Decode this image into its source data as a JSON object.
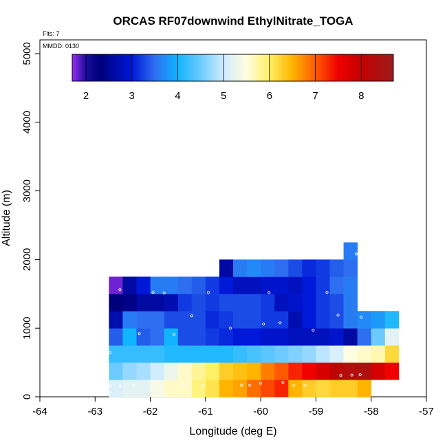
{
  "colors": {
    "background": "#ffffff",
    "axis": "#000000",
    "point_stroke": "#ffffff"
  },
  "chart_data": {
    "type": "heatmap",
    "title": "ORCAS RF07downwind EthylNitrate_TOGA",
    "xlabel": "Longitude (deg E)",
    "ylabel": "Altitude (m)",
    "xlim": [
      -64,
      -57
    ],
    "ylim": [
      0,
      5200
    ],
    "xticks": [
      -64,
      -63,
      -62,
      -61,
      -60,
      -59,
      -58,
      -57
    ],
    "yticks": [
      0,
      1000,
      2000,
      3000,
      4000,
      5000
    ],
    "annotations": {
      "flights": "Flts: 7",
      "date": "MMDD: 0130"
    },
    "colorbar": {
      "range": [
        1.7,
        8.7
      ],
      "ticks": [
        2,
        3,
        4,
        5,
        6,
        7,
        8
      ],
      "stops": [
        [
          1.7,
          "#9a2cf0"
        ],
        [
          2.0,
          "#1a0da0"
        ],
        [
          2.3,
          "#00007a"
        ],
        [
          3.0,
          "#0018d8"
        ],
        [
          3.5,
          "#2e6ef0"
        ],
        [
          4.0,
          "#10b4ff"
        ],
        [
          4.5,
          "#6ccaff"
        ],
        [
          5.0,
          "#d0ecff"
        ],
        [
          5.5,
          "#fffde0"
        ],
        [
          6.0,
          "#fff064"
        ],
        [
          6.5,
          "#ffb400"
        ],
        [
          7.0,
          "#ff5a00"
        ],
        [
          7.5,
          "#f00000"
        ],
        [
          8.0,
          "#c40000"
        ],
        [
          8.7,
          "#9e1c1c"
        ]
      ]
    },
    "cell": {
      "dlon": 0.25,
      "dalt": 250
    },
    "rows": [
      {
        "alt0": 0,
        "lon0": -62.75,
        "values": [
          5.1,
          5.2,
          5.2,
          5.4,
          5.6,
          5.6,
          5.9,
          6.1,
          6.5,
          6.6,
          6.9,
          7.1,
          7.3,
          6.5,
          6.3,
          6.2,
          6.3,
          6.3,
          6.5
        ]
      },
      {
        "alt0": 250,
        "lon0": -62.75,
        "values": [
          4.5,
          4.7,
          4.8,
          5.0,
          5.3,
          5.6,
          5.8,
          6.0,
          6.3,
          6.4,
          6.5,
          6.8,
          7.0,
          7.3,
          7.5,
          7.8,
          8.1,
          8.3,
          8.4,
          7.8,
          7.5
        ]
      },
      {
        "alt0": 500,
        "lon0": -62.75,
        "values": [
          4.2,
          4.2,
          4.2,
          4.2,
          4.1,
          4.1,
          4.1,
          4.1,
          4.1,
          4.2,
          4.3,
          4.4,
          4.5,
          4.6,
          4.7,
          4.9,
          5.1,
          5.5,
          5.6,
          5.7,
          6.2
        ]
      },
      {
        "alt0": 750,
        "lon0": -62.75,
        "values": [
          3.4,
          4.0,
          3.4,
          3.5,
          4.0,
          3.3,
          3.3,
          3.2,
          3.1,
          3.0,
          3.0,
          2.9,
          2.9,
          2.8,
          2.8,
          2.8,
          2.9,
          2.6,
          3.5,
          4.5,
          5.2
        ]
      },
      {
        "alt0": 1000,
        "lon0": -62.75,
        "values": [
          2.7,
          3.6,
          3.5,
          3.5,
          3.3,
          3.3,
          3.3,
          3.1,
          3.2,
          3.3,
          3.3,
          3.2,
          3.2,
          2.7,
          3.0,
          3.2,
          3.3,
          3.6,
          3.7,
          3.8,
          4.1
        ]
      },
      {
        "alt0": 1250,
        "lon0": -62.75,
        "values": [
          2.3,
          2.4,
          2.6,
          2.6,
          2.7,
          3.2,
          3.3,
          3.2,
          3.3,
          3.3,
          3.3,
          3.2,
          2.8,
          2.9,
          3.0,
          3.2,
          3.3,
          3.6
        ]
      },
      {
        "alt0": 1500,
        "lon0": -62.75,
        "values": [
          1.8,
          2.6,
          3.0,
          3.6,
          3.6,
          3.5,
          3.4,
          3.2,
          3.0,
          2.8,
          2.8,
          2.9,
          2.9,
          2.8,
          3.0,
          3.2,
          3.5,
          3.6
        ]
      },
      {
        "alt0": 1750,
        "lon0": -60.75,
        "values": [
          2.6,
          3.6,
          3.7,
          3.6,
          3.5,
          3.3,
          3.1,
          3.2,
          3.4,
          3.5
        ]
      },
      {
        "alt0": 2000,
        "lon0": -58.5,
        "values": [
          3.6
        ]
      }
    ],
    "points": [
      [
        -62.72,
        70
      ],
      [
        -62.72,
        158
      ],
      [
        -62.55,
        158
      ],
      [
        -62.3,
        160
      ],
      [
        -61.4,
        168
      ],
      [
        -61.05,
        168
      ],
      [
        -60.35,
        172
      ],
      [
        -60.2,
        170
      ],
      [
        -60.0,
        195
      ],
      [
        -59.6,
        210
      ],
      [
        -59.4,
        168
      ],
      [
        -59.2,
        165
      ],
      [
        -58.55,
        310
      ],
      [
        -58.35,
        315
      ],
      [
        -58.2,
        320
      ],
      [
        -62.73,
        640
      ],
      [
        -62.2,
        920
      ],
      [
        -61.57,
        910
      ],
      [
        -60.55,
        1000
      ],
      [
        -59.95,
        1060
      ],
      [
        -59.65,
        1080
      ],
      [
        -59.05,
        970
      ],
      [
        -58.6,
        1190
      ],
      [
        -58.18,
        1160
      ],
      [
        -62.55,
        1560
      ],
      [
        -61.95,
        1520
      ],
      [
        -61.75,
        1510
      ],
      [
        -61.25,
        1180
      ],
      [
        -60.95,
        1520
      ],
      [
        -59.85,
        1520
      ],
      [
        -58.8,
        1520
      ],
      [
        -58.27,
        2080
      ]
    ]
  }
}
